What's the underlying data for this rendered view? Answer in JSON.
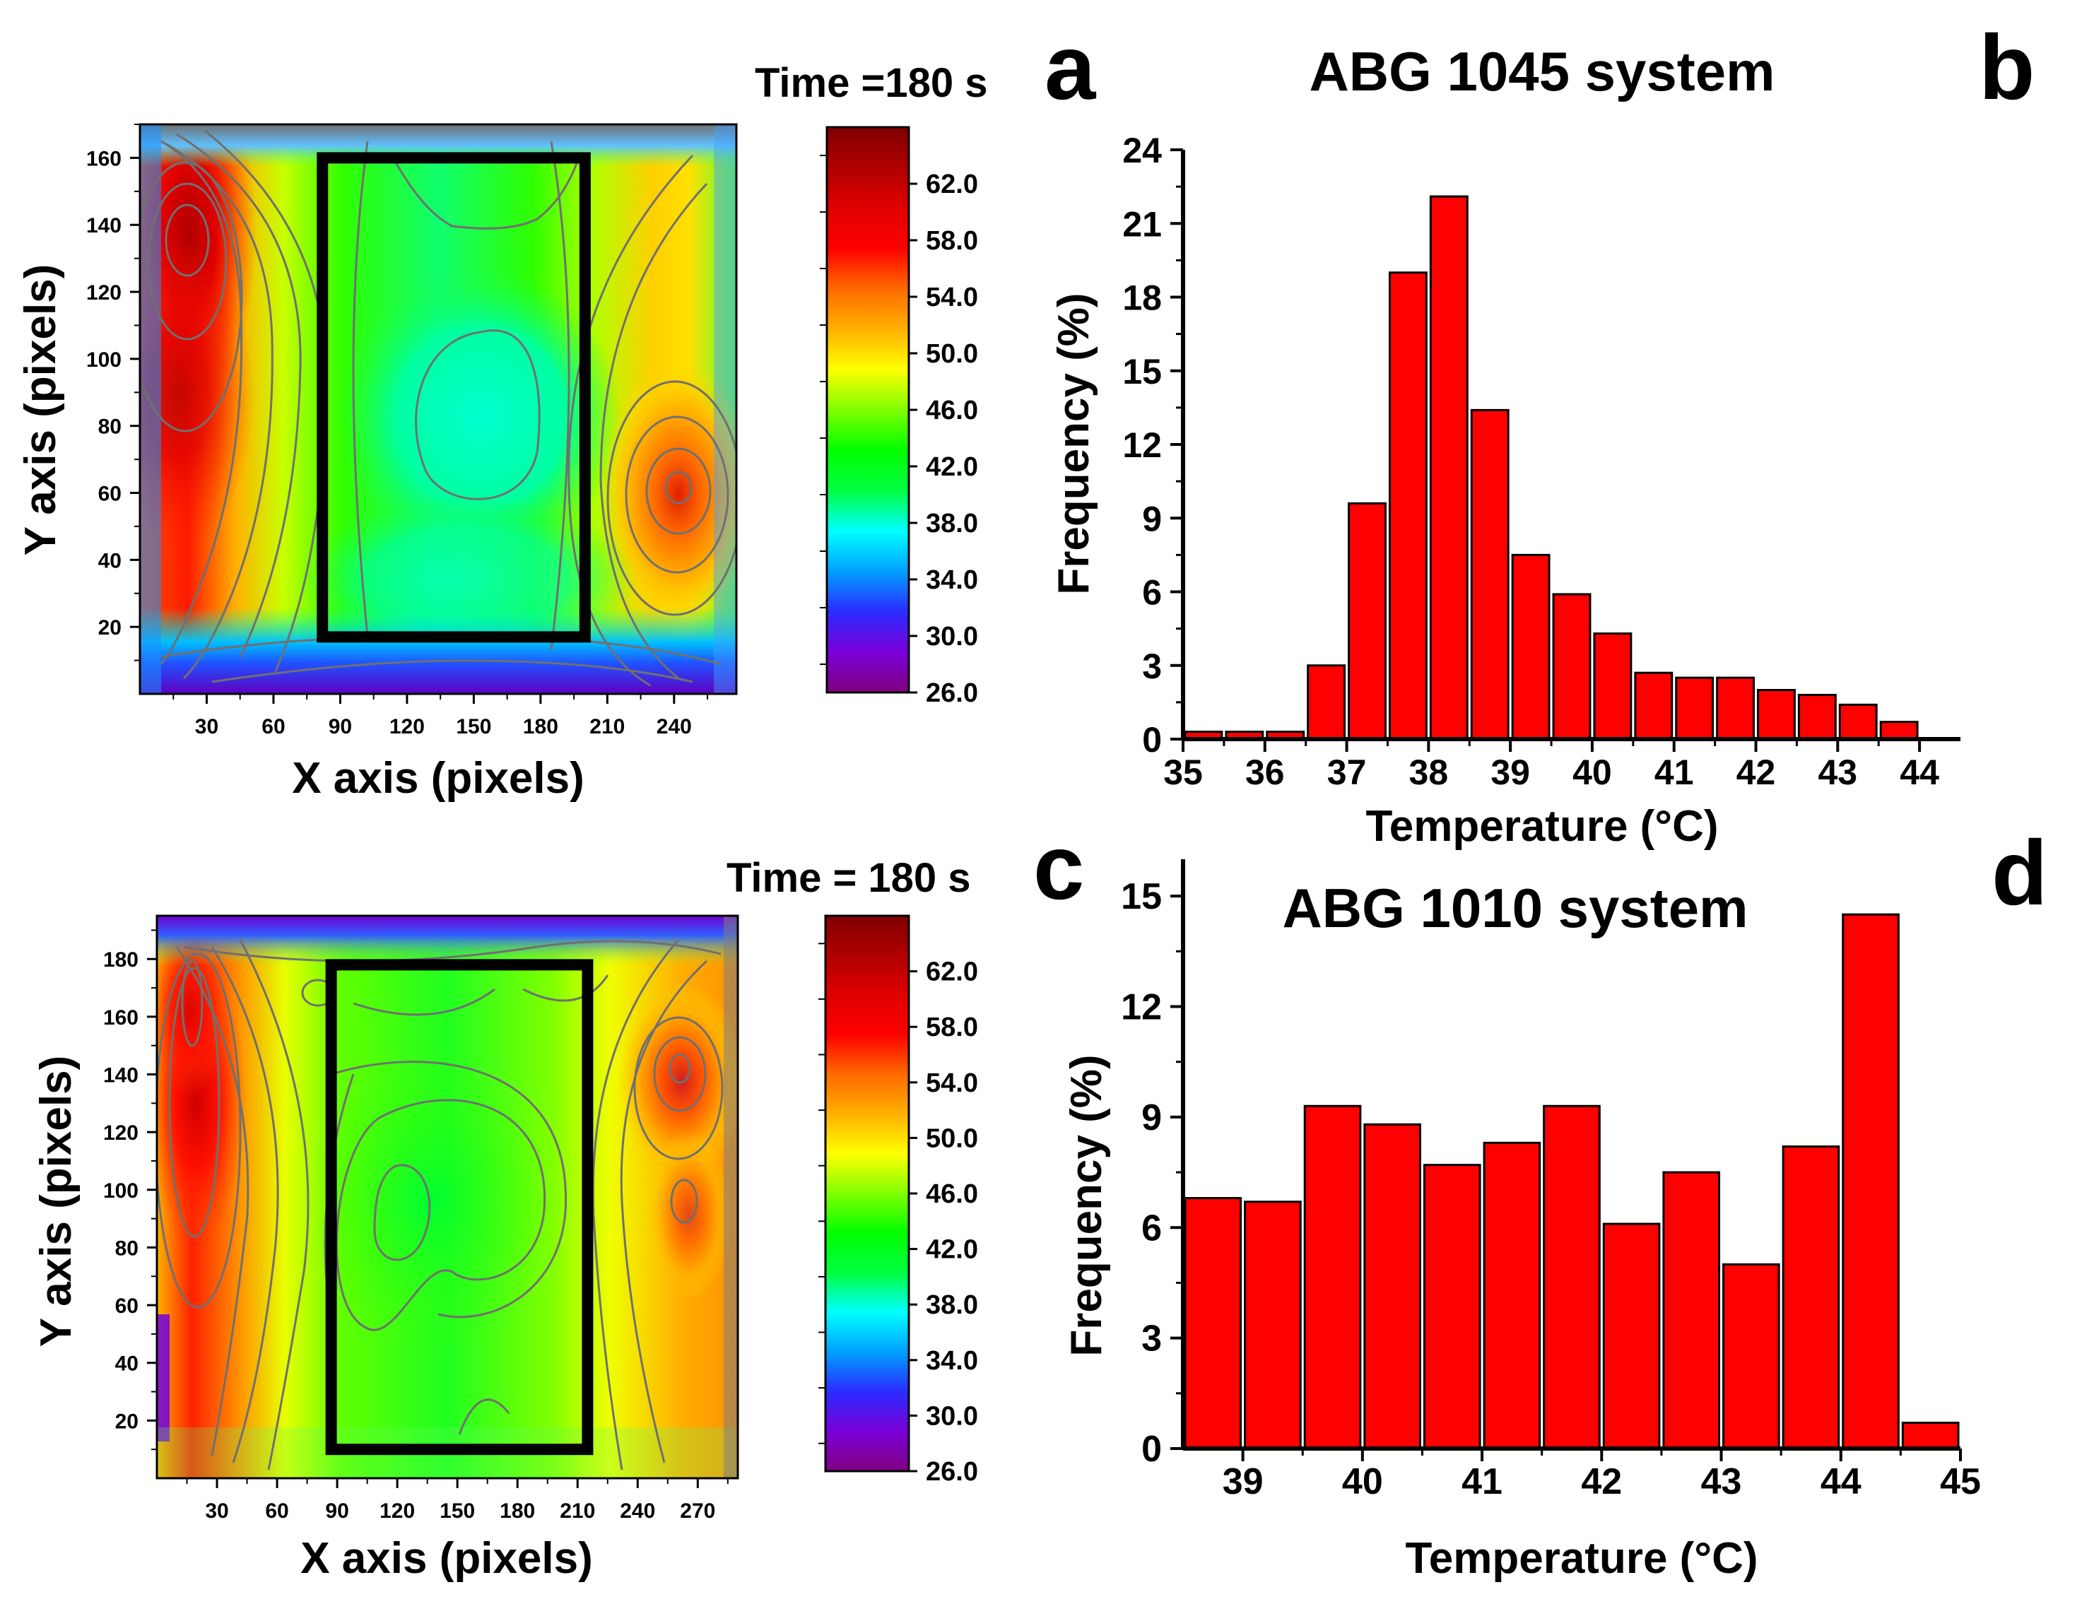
{
  "colors": {
    "bar_fill": "#ff0000",
    "bar_stroke": "#000000",
    "frame": "#000000",
    "colorbar_stops": [
      "#800080",
      "#7a00d8",
      "#2b2bff",
      "#00a0ff",
      "#00ffff",
      "#00ff40",
      "#00ff00",
      "#80ff00",
      "#ffff00",
      "#ffb000",
      "#ff6a00",
      "#ff0000",
      "#e00000",
      "#b00000",
      "#800000"
    ]
  },
  "chart_data": [
    {
      "panel": "a",
      "type": "heatmap",
      "title": "Time =180 s",
      "xlabel": "X axis (pixels)",
      "ylabel": "Y axis (pixels)",
      "xlim": [
        0,
        268
      ],
      "ylim": [
        0,
        170
      ],
      "xticks": [
        30,
        60,
        90,
        120,
        150,
        180,
        210,
        240
      ],
      "yticks": [
        20,
        40,
        60,
        80,
        100,
        120,
        140,
        160
      ],
      "roi_box": {
        "x": [
          82,
          200
        ],
        "y": [
          17,
          160
        ]
      },
      "colorbar": {
        "range": [
          26,
          66
        ],
        "ticks": [
          "26.0",
          "30.0",
          "34.0",
          "38.0",
          "42.0",
          "46.0",
          "50.0",
          "54.0",
          "58.0",
          "62.0"
        ]
      }
    },
    {
      "panel": "b",
      "type": "bar",
      "title": "ABG 1045 system",
      "xlabel": "Temperature (°C)",
      "ylabel": "Frequency (%)",
      "xlim": [
        35,
        44.5
      ],
      "ylim": [
        0,
        24
      ],
      "xticks": [
        35,
        36,
        37,
        38,
        39,
        40,
        41,
        42,
        43,
        44
      ],
      "yticks": [
        0,
        3,
        6,
        9,
        12,
        15,
        18,
        21,
        24
      ],
      "bin_width": 0.5,
      "x": [
        35.25,
        35.75,
        36.25,
        36.75,
        37.25,
        37.75,
        38.25,
        38.75,
        39.25,
        39.75,
        40.25,
        40.75,
        41.25,
        41.75,
        42.25,
        42.75,
        43.25,
        43.75
      ],
      "values": [
        0.3,
        0.3,
        0.3,
        3.0,
        9.6,
        19.0,
        22.1,
        13.4,
        7.5,
        5.9,
        4.3,
        2.7,
        2.5,
        2.5,
        2.0,
        1.8,
        1.4,
        0.7
      ]
    },
    {
      "panel": "c",
      "type": "heatmap",
      "title": "Time = 180 s",
      "xlabel": "X axis (pixels)",
      "ylabel": "Y axis (pixels)",
      "xlim": [
        0,
        290
      ],
      "ylim": [
        0,
        195
      ],
      "xticks": [
        30,
        60,
        90,
        120,
        150,
        180,
        210,
        240,
        270
      ],
      "yticks": [
        20,
        40,
        60,
        80,
        100,
        120,
        140,
        160,
        180
      ],
      "roi_box": {
        "x": [
          87,
          215
        ],
        "y": [
          10,
          178
        ]
      },
      "colorbar": {
        "range": [
          26,
          66
        ],
        "ticks": [
          "26.0",
          "30.0",
          "34.0",
          "38.0",
          "42.0",
          "46.0",
          "50.0",
          "54.0",
          "58.0",
          "62.0"
        ]
      }
    },
    {
      "panel": "d",
      "type": "bar",
      "title": "ABG 1010 system",
      "xlabel": "Temperature (°C)",
      "ylabel": "Frequency (%)",
      "xlim": [
        38.5,
        45
      ],
      "ylim": [
        0,
        16
      ],
      "xticks": [
        39,
        40,
        41,
        42,
        43,
        44,
        45
      ],
      "yticks": [
        0,
        3,
        6,
        9,
        12,
        15
      ],
      "bin_width": 0.5,
      "x": [
        38.75,
        39.25,
        39.75,
        40.25,
        40.75,
        41.25,
        41.75,
        42.25,
        42.75,
        43.25,
        43.75,
        44.25,
        44.75
      ],
      "values": [
        6.8,
        6.7,
        9.3,
        8.8,
        7.7,
        8.3,
        9.3,
        6.1,
        7.5,
        5.0,
        8.2,
        14.5,
        0.7
      ]
    }
  ],
  "panel_labels": {
    "a": "a",
    "b": "b",
    "c": "c",
    "d": "d"
  }
}
